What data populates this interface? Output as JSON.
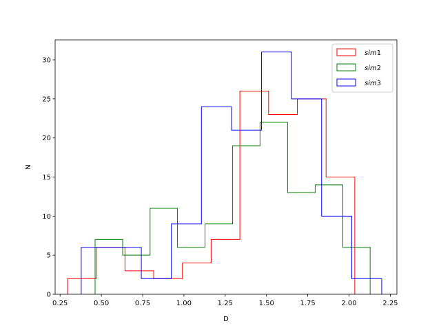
{
  "chart_data": {
    "type": "step-histogram",
    "xlabel": "D",
    "ylabel": "N",
    "xlim": [
      0.22,
      2.29
    ],
    "ylim": [
      0,
      32.55
    ],
    "x_ticks": [
      0.25,
      0.5,
      0.75,
      1.0,
      1.25,
      1.5,
      1.75,
      2.0,
      2.25
    ],
    "x_tick_labels": [
      "0.25",
      "0.50",
      "0.75",
      "1.00",
      "1.25",
      "1.50",
      "1.75",
      "2.00",
      "2.25"
    ],
    "y_ticks": [
      0,
      5,
      10,
      15,
      20,
      25,
      30
    ],
    "y_tick_labels": [
      "0",
      "5",
      "10",
      "15",
      "20",
      "25",
      "30"
    ],
    "grid": false,
    "legend_position": "top-right",
    "series": [
      {
        "name_prefix": "sim",
        "name_suffix": "1",
        "color": "#ff0000",
        "edges": [
          0.295,
          0.469,
          0.643,
          0.817,
          0.991,
          1.165,
          1.339,
          1.513,
          1.687,
          1.861,
          2.035
        ],
        "counts": [
          2,
          6,
          3,
          2,
          4,
          7,
          26,
          23,
          25,
          15
        ]
      },
      {
        "name_prefix": "sim",
        "name_suffix": "2",
        "color": "#008000",
        "edges": [
          0.462,
          0.629,
          0.795,
          0.961,
          1.128,
          1.295,
          1.461,
          1.628,
          1.795,
          1.962,
          2.128
        ],
        "counts": [
          7,
          5,
          11,
          6,
          9,
          19,
          22,
          13,
          14,
          6
        ]
      },
      {
        "name_prefix": "sim",
        "name_suffix": "3",
        "color": "#0000ff",
        "edges": [
          0.378,
          0.56,
          0.742,
          0.924,
          1.106,
          1.288,
          1.47,
          1.652,
          1.834,
          2.016,
          2.198
        ],
        "counts": [
          6,
          6,
          2,
          9,
          24,
          21,
          31,
          25,
          10,
          2
        ]
      }
    ]
  }
}
